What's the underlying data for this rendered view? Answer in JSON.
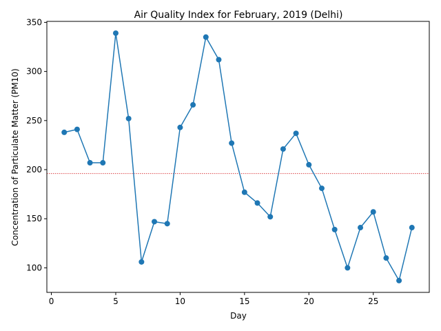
{
  "chart_data": {
    "type": "line",
    "title": "Air Quality Index for February, 2019 (Delhi)",
    "xlabel": "Day",
    "ylabel": "Concentration of Particulate Matter (PM10)",
    "xlim": [
      -0.35,
      29.35
    ],
    "ylim": [
      75,
      351
    ],
    "xticks": [
      0,
      5,
      10,
      15,
      20,
      25
    ],
    "yticks": [
      100,
      150,
      200,
      250,
      300,
      350
    ],
    "grid": false,
    "line_color": "#1f77b4",
    "reference_line": {
      "y": 196,
      "color": "#d62728",
      "style": "dotted"
    },
    "series": [
      {
        "x": [
          1,
          2,
          3,
          4,
          5,
          6,
          7,
          8,
          9,
          10,
          11,
          12,
          13,
          14,
          15,
          16,
          17,
          18,
          19,
          20,
          21,
          22,
          23,
          24,
          25,
          26,
          27,
          28
        ],
        "values": [
          238,
          241,
          207,
          207,
          339,
          252,
          106,
          147,
          145,
          243,
          266,
          335,
          312,
          227,
          177,
          166,
          152,
          221,
          237,
          205,
          181,
          139,
          100,
          141,
          157,
          110,
          87,
          141
        ]
      }
    ]
  }
}
